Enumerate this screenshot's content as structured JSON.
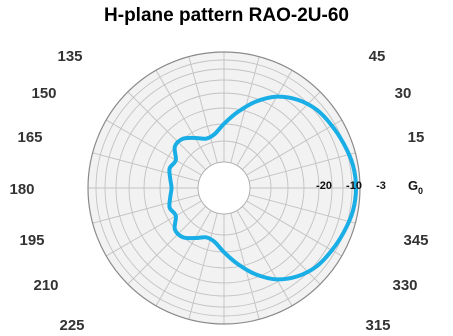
{
  "title": "H-plane pattern RAO-2U-60",
  "chart_data": {
    "type": "polar",
    "title": "H-plane pattern RAO-2U-60",
    "angle_labels": [
      "15",
      "30",
      "45",
      "135",
      "150",
      "165",
      "180",
      "195",
      "210",
      "225",
      "315",
      "330",
      "345"
    ],
    "radial_labels": [
      "-20",
      "-10",
      "-3"
    ],
    "ref_label": "G",
    "ref_label_sub": "0",
    "line_color": "#1aaee6",
    "grid": true,
    "series": [
      {
        "angles_deg": [
          0,
          10,
          20,
          30,
          40,
          50,
          60,
          70,
          80,
          90,
          100,
          110,
          120,
          130,
          140,
          150,
          160,
          170,
          180,
          190,
          200,
          210,
          220,
          230,
          240,
          250,
          260,
          270,
          280,
          290,
          300,
          310,
          320,
          330,
          340,
          350
        ],
        "radius_fraction": [
          1.0,
          0.99,
          0.96,
          0.93,
          0.9,
          0.84,
          0.75,
          0.62,
          0.48,
          0.36,
          0.27,
          0.25,
          0.3,
          0.36,
          0.36,
          0.28,
          0.3,
          0.27,
          0.25,
          0.27,
          0.3,
          0.28,
          0.36,
          0.36,
          0.3,
          0.25,
          0.27,
          0.36,
          0.48,
          0.62,
          0.75,
          0.84,
          0.9,
          0.93,
          0.96,
          0.99
        ]
      }
    ]
  }
}
